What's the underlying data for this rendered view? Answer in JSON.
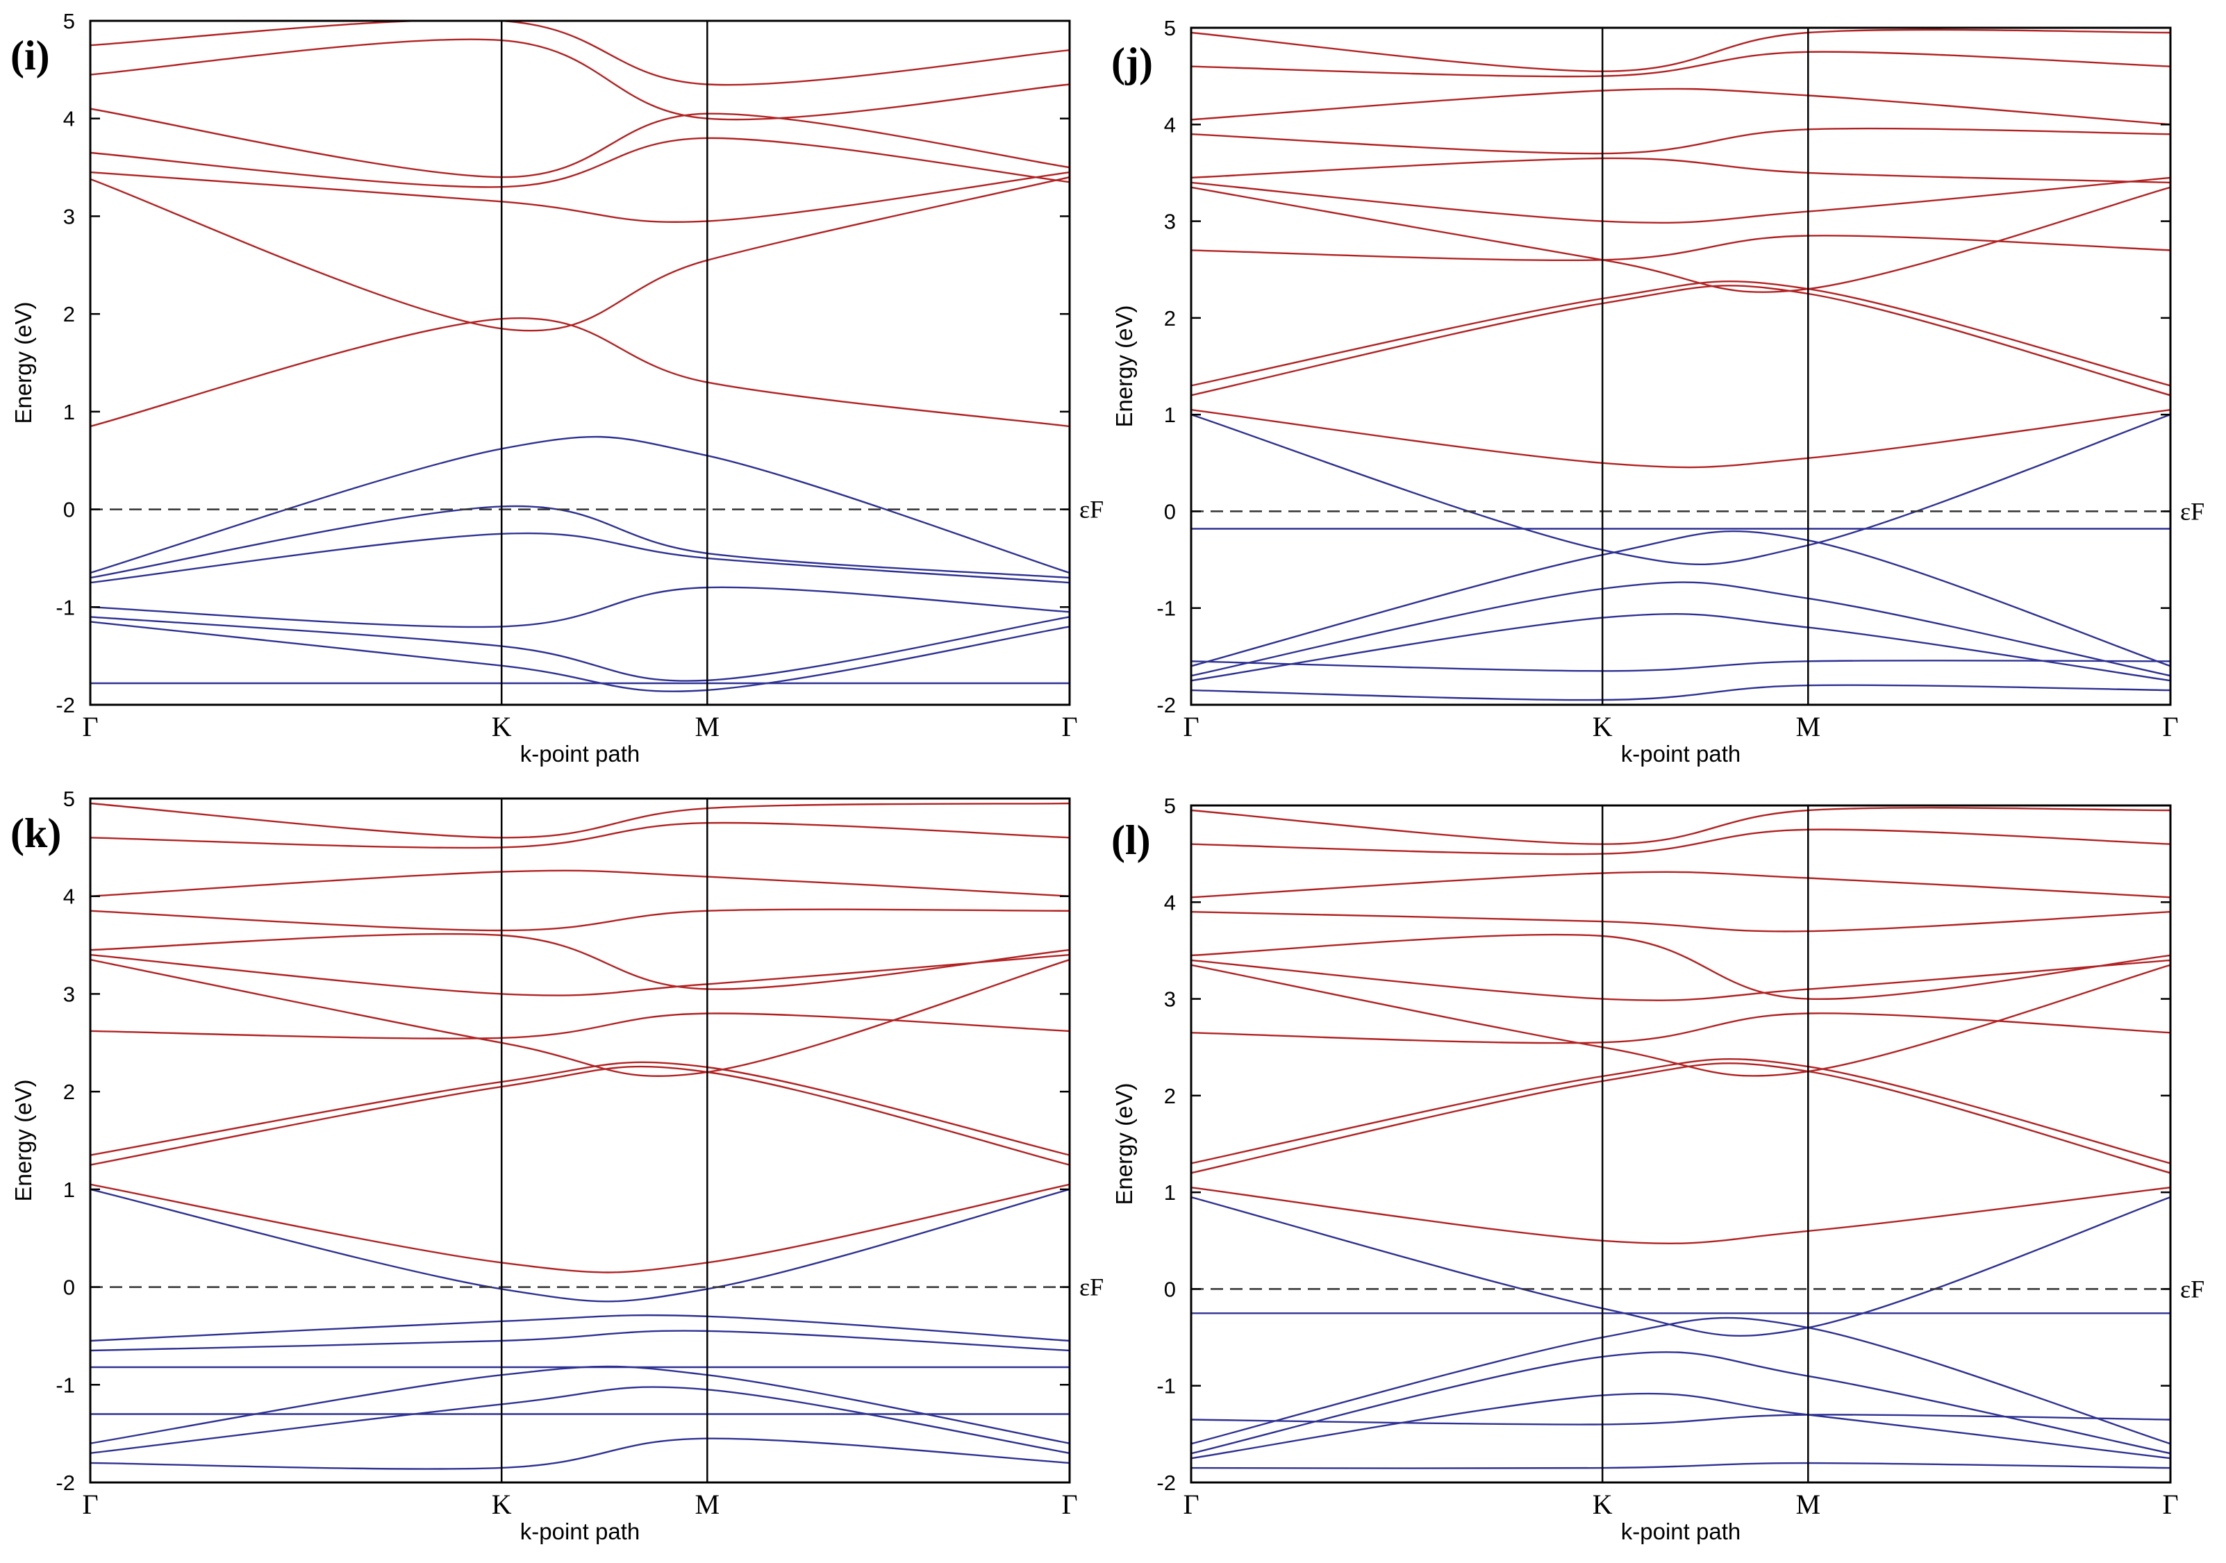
{
  "colors": {
    "conduction": "#b22222",
    "valence": "#2e3192",
    "axis": "#000000",
    "fermi_line": "#333333"
  },
  "chart_data": [
    {
      "type": "line",
      "panel_label": "(i)",
      "xlabel": "k-point path",
      "ylabel": "Energy (eV)",
      "ylim": [
        -2,
        5
      ],
      "yticks": [
        "-2",
        "-1",
        "0",
        "1",
        "2",
        "3",
        "4",
        "5"
      ],
      "kpoints": [
        {
          "label": "Γ",
          "pos": 0.0
        },
        {
          "label": "K",
          "pos": 0.42
        },
        {
          "label": "M",
          "pos": 0.63
        },
        {
          "label": "Γ",
          "pos": 1.0
        }
      ],
      "fermi_label": "εF",
      "fermi_level": 0,
      "series": [
        {
          "name": "cb",
          "band": "conduction",
          "values": [
            0.85,
            1.95,
            1.3,
            0.85
          ]
        },
        {
          "name": "cb",
          "band": "conduction",
          "values": [
            3.38,
            1.85,
            2.55,
            3.4
          ]
        },
        {
          "name": "cb",
          "band": "conduction",
          "values": [
            3.45,
            3.15,
            2.95,
            3.45
          ]
        },
        {
          "name": "cb",
          "band": "conduction",
          "values": [
            3.65,
            3.3,
            3.8,
            3.35
          ]
        },
        {
          "name": "cb",
          "band": "conduction",
          "values": [
            4.1,
            3.4,
            4.05,
            3.5
          ]
        },
        {
          "name": "cb",
          "band": "conduction",
          "values": [
            4.45,
            4.8,
            4.0,
            4.35
          ]
        },
        {
          "name": "cb",
          "band": "conduction",
          "values": [
            4.75,
            5.0,
            4.35,
            4.7
          ]
        },
        {
          "name": "vb",
          "band": "valence",
          "values": [
            -0.65,
            0.62,
            0.55,
            -0.65
          ]
        },
        {
          "name": "vb",
          "band": "valence",
          "values": [
            -0.7,
            0.03,
            -0.45,
            -0.7
          ]
        },
        {
          "name": "vb",
          "band": "valence",
          "values": [
            -0.75,
            -0.25,
            -0.5,
            -0.75
          ]
        },
        {
          "name": "vb",
          "band": "valence",
          "values": [
            -1.0,
            -1.2,
            -0.8,
            -1.05
          ]
        },
        {
          "name": "vb",
          "band": "valence",
          "values": [
            -1.1,
            -1.4,
            -1.75,
            -1.1
          ]
        },
        {
          "name": "vb",
          "band": "valence",
          "values": [
            -1.15,
            -1.6,
            -1.85,
            -1.2
          ]
        },
        {
          "name": "vb",
          "band": "valence",
          "values": [
            -1.78,
            -1.78,
            -1.78,
            -1.78
          ]
        }
      ]
    },
    {
      "type": "line",
      "panel_label": "(j)",
      "xlabel": "k-point path",
      "ylabel": "Energy (eV)",
      "ylim": [
        -2,
        5
      ],
      "yticks": [
        "-2",
        "-1",
        "0",
        "1",
        "2",
        "3",
        "4",
        "5"
      ],
      "kpoints": [
        {
          "label": "Γ",
          "pos": 0.0
        },
        {
          "label": "K",
          "pos": 0.42
        },
        {
          "label": "M",
          "pos": 0.63
        },
        {
          "label": "Γ",
          "pos": 1.0
        }
      ],
      "fermi_label": "εF",
      "fermi_level": 0,
      "series": [
        {
          "name": "cb",
          "band": "conduction",
          "values": [
            1.05,
            0.5,
            0.55,
            1.05
          ]
        },
        {
          "name": "cb",
          "band": "conduction",
          "values": [
            1.2,
            2.15,
            2.25,
            1.2
          ]
        },
        {
          "name": "cb",
          "band": "conduction",
          "values": [
            1.3,
            2.2,
            2.3,
            1.3
          ]
        },
        {
          "name": "cb",
          "band": "conduction",
          "values": [
            2.7,
            2.6,
            2.85,
            2.7
          ]
        },
        {
          "name": "cb",
          "band": "conduction",
          "values": [
            3.35,
            2.6,
            2.3,
            3.35
          ]
        },
        {
          "name": "cb",
          "band": "conduction",
          "values": [
            3.4,
            3.0,
            3.1,
            3.45
          ]
        },
        {
          "name": "cb",
          "band": "conduction",
          "values": [
            3.45,
            3.65,
            3.5,
            3.4
          ]
        },
        {
          "name": "cb",
          "band": "conduction",
          "values": [
            3.9,
            3.7,
            3.95,
            3.9
          ]
        },
        {
          "name": "cb",
          "band": "conduction",
          "values": [
            4.05,
            4.35,
            4.3,
            4.0
          ]
        },
        {
          "name": "cb",
          "band": "conduction",
          "values": [
            4.6,
            4.5,
            4.75,
            4.6
          ]
        },
        {
          "name": "cb",
          "band": "conduction",
          "values": [
            4.95,
            4.55,
            4.95,
            4.95
          ]
        },
        {
          "name": "vb",
          "band": "valence",
          "values": [
            1.0,
            -0.4,
            -0.35,
            1.0
          ]
        },
        {
          "name": "vb",
          "band": "valence",
          "values": [
            -0.18,
            -0.18,
            -0.18,
            -0.18
          ]
        },
        {
          "name": "vb",
          "band": "valence",
          "values": [
            -1.6,
            -0.45,
            -0.3,
            -1.6
          ]
        },
        {
          "name": "vb",
          "band": "valence",
          "values": [
            -1.7,
            -0.8,
            -0.9,
            -1.7
          ]
        },
        {
          "name": "vb",
          "band": "valence",
          "values": [
            -1.75,
            -1.1,
            -1.2,
            -1.75
          ]
        },
        {
          "name": "vb",
          "band": "valence",
          "values": [
            -1.55,
            -1.65,
            -1.55,
            -1.55
          ]
        },
        {
          "name": "vb",
          "band": "valence",
          "values": [
            -1.85,
            -1.95,
            -1.8,
            -1.85
          ]
        }
      ]
    },
    {
      "type": "line",
      "panel_label": "(k)",
      "xlabel": "k-point path",
      "ylabel": "Energy (eV)",
      "ylim": [
        -2,
        5
      ],
      "yticks": [
        "-2",
        "-1",
        "0",
        "1",
        "2",
        "3",
        "4",
        "5"
      ],
      "kpoints": [
        {
          "label": "Γ",
          "pos": 0.0
        },
        {
          "label": "K",
          "pos": 0.42
        },
        {
          "label": "M",
          "pos": 0.63
        },
        {
          "label": "Γ",
          "pos": 1.0
        }
      ],
      "fermi_label": "εF",
      "fermi_level": 0,
      "series": [
        {
          "name": "cb",
          "band": "conduction",
          "values": [
            1.05,
            0.25,
            0.25,
            1.05
          ]
        },
        {
          "name": "cb",
          "band": "conduction",
          "values": [
            1.25,
            2.05,
            2.2,
            1.25
          ]
        },
        {
          "name": "cb",
          "band": "conduction",
          "values": [
            1.35,
            2.1,
            2.25,
            1.35
          ]
        },
        {
          "name": "cb",
          "band": "conduction",
          "values": [
            2.62,
            2.55,
            2.8,
            2.62
          ]
        },
        {
          "name": "cb",
          "band": "conduction",
          "values": [
            3.35,
            2.5,
            2.2,
            3.35
          ]
        },
        {
          "name": "cb",
          "band": "conduction",
          "values": [
            3.4,
            3.0,
            3.1,
            3.4
          ]
        },
        {
          "name": "cb",
          "band": "conduction",
          "values": [
            3.45,
            3.6,
            3.05,
            3.45
          ]
        },
        {
          "name": "cb",
          "band": "conduction",
          "values": [
            3.85,
            3.65,
            3.85,
            3.85
          ]
        },
        {
          "name": "cb",
          "band": "conduction",
          "values": [
            4.0,
            4.25,
            4.2,
            4.0
          ]
        },
        {
          "name": "cb",
          "band": "conduction",
          "values": [
            4.6,
            4.5,
            4.75,
            4.6
          ]
        },
        {
          "name": "cb",
          "band": "conduction",
          "values": [
            4.95,
            4.6,
            4.9,
            4.95
          ]
        },
        {
          "name": "vb",
          "band": "valence",
          "values": [
            1.0,
            -0.02,
            -0.02,
            1.0
          ]
        },
        {
          "name": "vb",
          "band": "valence",
          "values": [
            -0.55,
            -0.35,
            -0.3,
            -0.55
          ]
        },
        {
          "name": "vb",
          "band": "valence",
          "values": [
            -0.65,
            -0.55,
            -0.45,
            -0.65
          ]
        },
        {
          "name": "vb",
          "band": "valence",
          "values": [
            -0.82,
            -0.82,
            -0.82,
            -0.82
          ]
        },
        {
          "name": "vb",
          "band": "valence",
          "values": [
            -1.6,
            -0.9,
            -0.9,
            -1.6
          ]
        },
        {
          "name": "vb",
          "band": "valence",
          "values": [
            -1.7,
            -1.2,
            -1.05,
            -1.7
          ]
        },
        {
          "name": "vb",
          "band": "valence",
          "values": [
            -1.3,
            -1.3,
            -1.3,
            -1.3
          ]
        },
        {
          "name": "vb",
          "band": "valence",
          "values": [
            -1.8,
            -1.85,
            -1.55,
            -1.8
          ]
        }
      ]
    },
    {
      "type": "line",
      "panel_label": "(l)",
      "xlabel": "k-point path",
      "ylabel": "Energy (eV)",
      "ylim": [
        -2,
        5
      ],
      "yticks": [
        "-2",
        "-1",
        "0",
        "1",
        "2",
        "3",
        "4",
        "5"
      ],
      "kpoints": [
        {
          "label": "Γ",
          "pos": 0.0
        },
        {
          "label": "K",
          "pos": 0.42
        },
        {
          "label": "M",
          "pos": 0.63
        },
        {
          "label": "Γ",
          "pos": 1.0
        }
      ],
      "fermi_label": "εF",
      "fermi_level": 0,
      "series": [
        {
          "name": "cb",
          "band": "conduction",
          "values": [
            1.05,
            0.5,
            0.6,
            1.05
          ]
        },
        {
          "name": "cb",
          "band": "conduction",
          "values": [
            1.2,
            2.15,
            2.25,
            1.2
          ]
        },
        {
          "name": "cb",
          "band": "conduction",
          "values": [
            1.3,
            2.2,
            2.3,
            1.3
          ]
        },
        {
          "name": "cb",
          "band": "conduction",
          "values": [
            2.65,
            2.55,
            2.85,
            2.65
          ]
        },
        {
          "name": "cb",
          "band": "conduction",
          "values": [
            3.35,
            2.5,
            2.25,
            3.35
          ]
        },
        {
          "name": "cb",
          "band": "conduction",
          "values": [
            3.4,
            3.0,
            3.1,
            3.4
          ]
        },
        {
          "name": "cb",
          "band": "conduction",
          "values": [
            3.45,
            3.65,
            3.0,
            3.45
          ]
        },
        {
          "name": "cb",
          "band": "conduction",
          "values": [
            3.9,
            3.8,
            3.7,
            3.9
          ]
        },
        {
          "name": "cb",
          "band": "conduction",
          "values": [
            4.05,
            4.3,
            4.25,
            4.05
          ]
        },
        {
          "name": "cb",
          "band": "conduction",
          "values": [
            4.6,
            4.5,
            4.75,
            4.6
          ]
        },
        {
          "name": "cb",
          "band": "conduction",
          "values": [
            4.95,
            4.6,
            4.95,
            4.95
          ]
        },
        {
          "name": "vb",
          "band": "valence",
          "values": [
            0.95,
            -0.2,
            -0.4,
            0.95
          ]
        },
        {
          "name": "vb",
          "band": "valence",
          "values": [
            -0.25,
            -0.25,
            -0.25,
            -0.25
          ]
        },
        {
          "name": "vb",
          "band": "valence",
          "values": [
            -1.6,
            -0.5,
            -0.4,
            -1.6
          ]
        },
        {
          "name": "vb",
          "band": "valence",
          "values": [
            -1.7,
            -0.7,
            -0.9,
            -1.7
          ]
        },
        {
          "name": "vb",
          "band": "valence",
          "values": [
            -1.75,
            -1.1,
            -1.3,
            -1.75
          ]
        },
        {
          "name": "vb",
          "band": "valence",
          "values": [
            -1.35,
            -1.4,
            -1.3,
            -1.35
          ]
        },
        {
          "name": "vb",
          "band": "valence",
          "values": [
            -1.85,
            -1.85,
            -1.8,
            -1.85
          ]
        }
      ]
    }
  ]
}
